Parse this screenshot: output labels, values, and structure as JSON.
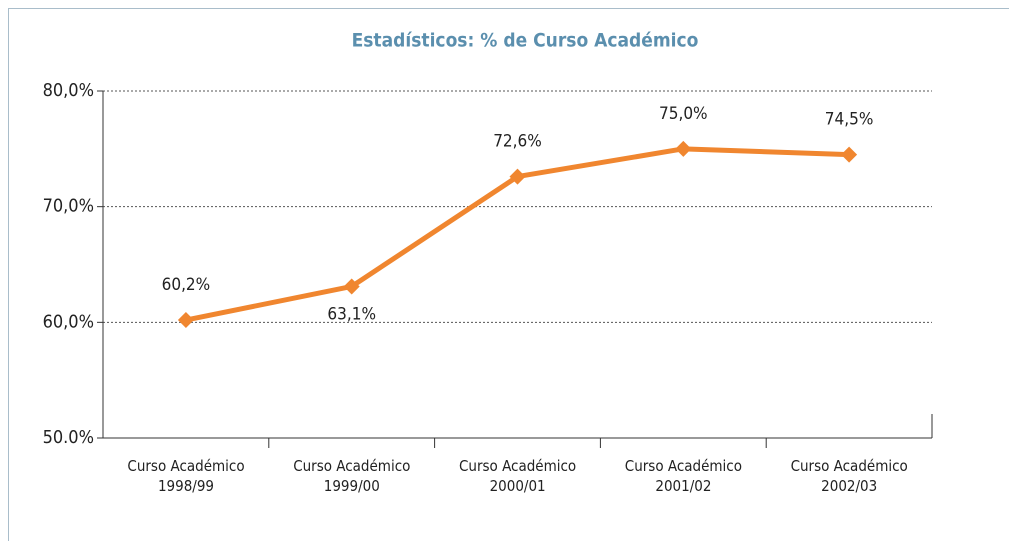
{
  "chart_data": {
    "type": "line",
    "title": "Estadísticos: % de Curso Académico",
    "categories": [
      "Curso Académico\n1998/99",
      "Curso Académico\n1999/00",
      "Curso Académico\n2000/01",
      "Curso Académico\n2001/02",
      "Curso Académico\n2002/03"
    ],
    "series": [
      {
        "name": "% de Curso Académico",
        "color": "#f0862f",
        "values": [
          60.2,
          63.1,
          72.6,
          75.0,
          74.5
        ],
        "value_labels": [
          "60,2%",
          "63,1%",
          "72,6%",
          "75,0%",
          "74,5%"
        ]
      }
    ],
    "ylim": [
      50,
      80
    ],
    "yticks": [
      {
        "value": 50,
        "label": "50.0%"
      },
      {
        "value": 60,
        "label": "60,0%"
      },
      {
        "value": 70,
        "label": "70,0%"
      },
      {
        "value": 80,
        "label": "80,0%"
      }
    ],
    "grid": true
  }
}
